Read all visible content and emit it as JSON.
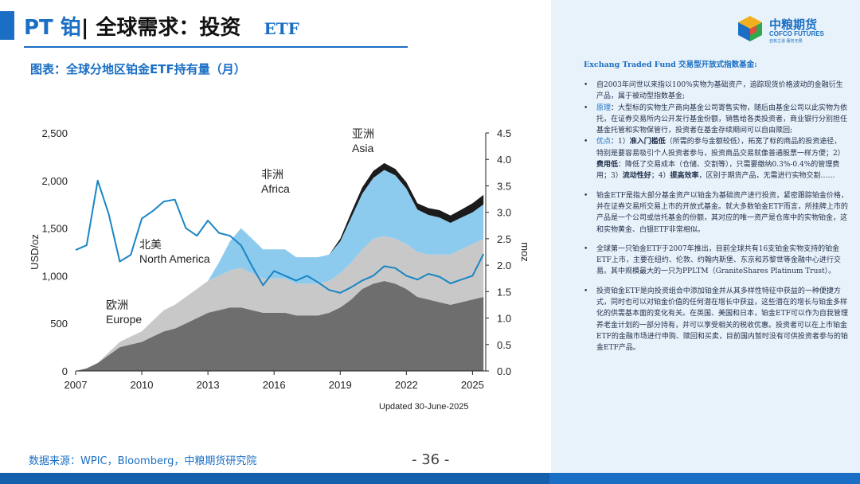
{
  "title": {
    "metal": "PT 铂",
    "separator": "|",
    "main": "全球需求：投资",
    "suffix": "ETF"
  },
  "chart_caption": "图表：全球分地区铂金ETF持有量（月）",
  "updated": "Updated 30-June-2025",
  "source": "数据来源：WPIC，Bloomberg，中粮期货研究院",
  "page_number": "- 36 -",
  "logo": {
    "cn": "中粮期货",
    "en": "COFCO FUTURES",
    "tag": "自有之道 服务无限"
  },
  "panel": {
    "header": "Exchang Traded Fund 交易型开放式指数基金:",
    "bullets": [
      {
        "parts": [
          {
            "t": "自2003年问世以来指以100%实物为基础资产，追踪现货价格波动的金融衍生产品，属于被动型指数基金;"
          }
        ]
      },
      {
        "parts": [
          {
            "t": "原理",
            "hl": true
          },
          {
            "t": "：大型标的实物生产商向基金公司寄售实物，随后由基金公司以此实物为依托，在证券交易所内公开发行基金份额，销售给各类投资者，商业银行分别担任基金托管和实物保管行，投资者在基金存续期间可以自由赎回;"
          }
        ]
      },
      {
        "parts": [
          {
            "t": "优点",
            "hl": true
          },
          {
            "t": "：1）"
          },
          {
            "t": "准入门槛低",
            "b": true
          },
          {
            "t": "（所需的参与金额较低），拓宽了标的商品的投资途径，特别是要容易吸引个人投资者参与，投资商品交易就像普通股票一样方便；2）"
          },
          {
            "t": "费用低",
            "b": true
          },
          {
            "t": "：降低了交易成本（仓储、交割等），只需要缴纳0.3%-0.4%的管理费用；3）"
          },
          {
            "t": "流动性好",
            "b": true
          },
          {
            "t": "；4）"
          },
          {
            "t": "提高效率",
            "b": true
          },
          {
            "t": "，区别于期货产品，无需进行实物交割……"
          }
        ]
      },
      {
        "parts": [
          {
            "t": "铂金ETF是指大部分基金资产以铂金为基础资产进行投资，紧密跟踪铂金价格，并在证券交易所交易上市的开放式基金。就大多数铂金ETF而言，所挂牌上市的产品是一个公司或信托基金的份额，其对应的唯一资产是仓库中的实物铂金，这和实物黄金、白银ETF非常相似。"
          }
        ]
      },
      {
        "parts": [
          {
            "t": "全球第一只铂金ETF于2007年推出，目前全球共有16支铂金实物支持的铂金ETF上市，主要在纽约、伦敦、约翰内斯堡、东京和苏黎世等金融中心进行交易。其中规模最大的一只为PPLTM（GraniteShares Platinum Trust）。"
          }
        ]
      },
      {
        "parts": [
          {
            "t": "投资铂金ETF是向投资组合中添加铂金并从其多样性特征中获益的一种便捷方式，同时也可以对铂金价值的任何潜在增长中获益，这些潜在的增长与铂金多样化的供需基本面的变化有关。在英国、美国和日本，铂金ETF可以作为自我管理养老金计划的一部分持有，并可以享受相关的税收优惠。投资者可以在上市铂金ETF的金融市场进行申购、赎回和买卖，目前国内暂时没有可供投资者参与的铂金ETF产品。"
          }
        ]
      }
    ]
  },
  "chart_data": {
    "type": "area",
    "x": [
      2007.0,
      2007.5,
      2008.0,
      2008.5,
      2009.0,
      2009.5,
      2010.0,
      2010.5,
      2011.0,
      2011.5,
      2012.0,
      2012.5,
      2013.0,
      2013.5,
      2014.0,
      2014.5,
      2015.0,
      2015.5,
      2016.0,
      2016.5,
      2017.0,
      2017.5,
      2018.0,
      2018.5,
      2019.0,
      2019.5,
      2020.0,
      2020.5,
      2021.0,
      2021.5,
      2022.0,
      2022.5,
      2023.0,
      2023.5,
      2024.0,
      2024.5,
      2025.0,
      2025.5
    ],
    "series": [
      {
        "name": "Europe",
        "color": "#6e6e6e",
        "values": [
          0.0,
          0.05,
          0.15,
          0.3,
          0.45,
          0.5,
          0.55,
          0.65,
          0.75,
          0.8,
          0.9,
          1.0,
          1.1,
          1.15,
          1.2,
          1.2,
          1.15,
          1.1,
          1.1,
          1.1,
          1.05,
          1.05,
          1.05,
          1.1,
          1.2,
          1.35,
          1.55,
          1.65,
          1.7,
          1.65,
          1.55,
          1.4,
          1.35,
          1.3,
          1.25,
          1.3,
          1.35,
          1.4
        ]
      },
      {
        "name": "North America",
        "color": "#c8c8c8",
        "values": [
          0.0,
          0.0,
          0.0,
          0.05,
          0.1,
          0.15,
          0.2,
          0.3,
          0.4,
          0.45,
          0.5,
          0.55,
          0.6,
          0.65,
          0.7,
          0.75,
          0.7,
          0.65,
          0.65,
          0.65,
          0.6,
          0.6,
          0.6,
          0.6,
          0.65,
          0.7,
          0.75,
          0.85,
          0.85,
          0.85,
          0.85,
          0.85,
          0.85,
          0.9,
          0.95,
          1.0,
          1.05,
          1.1
        ]
      },
      {
        "name": "Africa",
        "color": "#8ccbee",
        "values": [
          0.0,
          0.0,
          0.0,
          0.0,
          0.0,
          0.0,
          0.0,
          0.0,
          0.0,
          0.0,
          0.0,
          0.0,
          0.0,
          0.25,
          0.55,
          0.75,
          0.65,
          0.55,
          0.55,
          0.55,
          0.5,
          0.5,
          0.5,
          0.5,
          0.6,
          0.85,
          1.05,
          1.15,
          1.25,
          1.2,
          1.05,
          0.8,
          0.75,
          0.7,
          0.6,
          0.6,
          0.6,
          0.65
        ]
      },
      {
        "name": "Asia",
        "color": "#1b1b1b",
        "values": [
          0.0,
          0.0,
          0.0,
          0.0,
          0.0,
          0.0,
          0.0,
          0.0,
          0.0,
          0.0,
          0.0,
          0.0,
          0.0,
          0.0,
          0.0,
          0.0,
          0.0,
          0.0,
          0.0,
          0.0,
          0.0,
          0.0,
          0.0,
          0.0,
          0.05,
          0.1,
          0.12,
          0.13,
          0.13,
          0.12,
          0.12,
          0.12,
          0.13,
          0.14,
          0.14,
          0.15,
          0.17,
          0.18
        ]
      }
    ],
    "overlay": {
      "color": "#1a85c4",
      "axis": "left",
      "values": [
        1270,
        1320,
        2000,
        1650,
        1150,
        1220,
        1600,
        1680,
        1780,
        1800,
        1500,
        1420,
        1580,
        1450,
        1420,
        1320,
        1100,
        900,
        1050,
        1000,
        950,
        1000,
        930,
        850,
        820,
        880,
        950,
        1000,
        1100,
        1080,
        1000,
        960,
        1020,
        990,
        920,
        960,
        1000,
        1230
      ]
    },
    "regions": [
      {
        "cn": "欧洲",
        "en": "Europe"
      },
      {
        "cn": "北美",
        "en": "North America"
      },
      {
        "cn": "非洲",
        "en": "Africa"
      },
      {
        "cn": "亚洲",
        "en": "Asia"
      }
    ],
    "xlabel": "",
    "ylabel_left": "USD/oz",
    "ylabel_right": "moz",
    "xticks": [
      "2007",
      "2010",
      "2013",
      "2016",
      "2019",
      "2022",
      "2025"
    ],
    "yticks_left": [
      "0",
      "500",
      "1,000",
      "1,500",
      "2,000",
      "2,500"
    ],
    "yticks_right": [
      "0.0",
      "0.5",
      "1.0",
      "1.5",
      "2.0",
      "2.5",
      "3.0",
      "3.5",
      "4.0",
      "4.5"
    ],
    "xlim": [
      2007,
      2025.6
    ],
    "ylim_left": [
      0,
      2500
    ],
    "ylim_right": [
      0,
      4.5
    ],
    "grid": false
  }
}
